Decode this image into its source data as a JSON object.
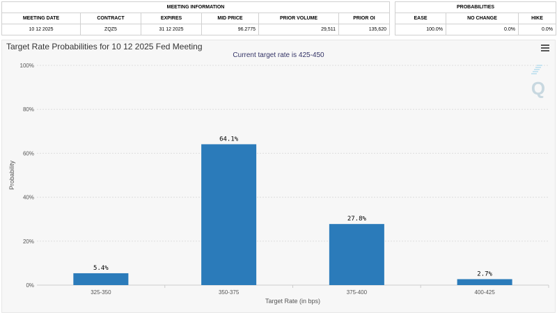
{
  "meeting_info": {
    "header": "MEETING INFORMATION",
    "columns": [
      "MEETING DATE",
      "CONTRACT",
      "EXPIRES",
      "MID PRICE",
      "PRIOR VOLUME",
      "PRIOR OI"
    ],
    "row": [
      "10 12 2025",
      "ZQZ5",
      "31 12 2025",
      "96.2775",
      "29,511",
      "135,620"
    ]
  },
  "probabilities": {
    "header": "PROBABILITIES",
    "columns": [
      "EASE",
      "NO CHANGE",
      "HIKE"
    ],
    "row": [
      "100.0%",
      "0.0%",
      "0.0%"
    ]
  },
  "menu_icon": "hamburger-menu-icon",
  "logo_text": "Q",
  "chart_data": {
    "type": "bar",
    "title": "Target Rate Probabilities for 10 12 2025 Fed Meeting",
    "subtitle": "Current target rate is 425-450",
    "xlabel": "Target Rate (in bps)",
    "ylabel": "Probability",
    "categories": [
      "325-350",
      "350-375",
      "375-400",
      "400-425"
    ],
    "values": [
      5.4,
      64.1,
      27.8,
      2.7
    ],
    "data_labels": [
      "5.4%",
      "64.1%",
      "27.8%",
      "2.7%"
    ],
    "ylim": [
      0,
      100
    ],
    "yticks": [
      0,
      20,
      40,
      60,
      80,
      100
    ],
    "ytick_labels": [
      "0%",
      "20%",
      "40%",
      "60%",
      "80%",
      "100%"
    ],
    "bar_color": "#2b7bba",
    "grid": true
  }
}
